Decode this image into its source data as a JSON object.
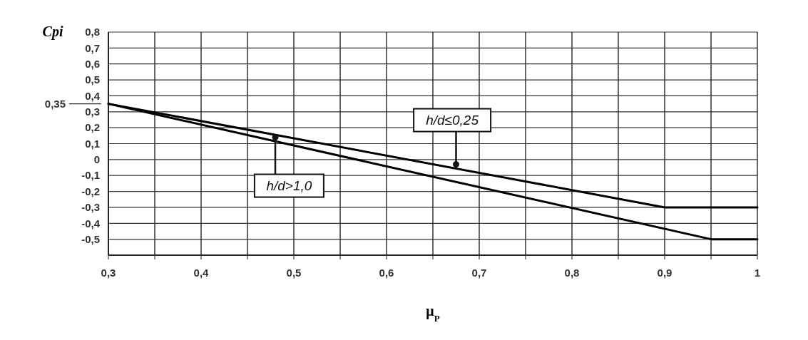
{
  "chart_data": {
    "type": "line",
    "xlabel": "μ$_{P}$",
    "ylabel": "Cpi",
    "series": [
      {
        "color": "#000000",
        "x": [
          0.3,
          0.9,
          1
        ],
        "values": [
          0.35,
          -0.3,
          -0.3
        ]
      },
      {
        "color": "#000000",
        "x": [
          0.3,
          0.95,
          1
        ],
        "values": [
          0.35,
          -0.5,
          -0.5
        ]
      }
    ],
    "xlim": [
      0.3,
      1
    ],
    "ylim": [
      -0.6,
      0.8
    ],
    "xticks": [
      {
        "value": 0.3,
        "label": "0,3"
      },
      {
        "value": 0.35,
        "label": null
      },
      {
        "value": 0.4,
        "label": "0,4"
      },
      {
        "value": 0.45,
        "label": null
      },
      {
        "value": 0.5,
        "label": "0,5"
      },
      {
        "value": 0.55,
        "label": null
      },
      {
        "value": 0.6,
        "label": "0,6"
      },
      {
        "value": 0.65,
        "label": null
      },
      {
        "value": 0.7,
        "label": "0,7"
      },
      {
        "value": 0.75,
        "label": null
      },
      {
        "value": 0.8,
        "label": "0,8"
      },
      {
        "value": 0.85,
        "label": null
      },
      {
        "value": 0.9,
        "label": "0,9"
      },
      {
        "value": 0.95,
        "label": null
      },
      1
    ],
    "yticks": [
      {
        "value": -0.6,
        "label": null
      },
      {
        "value": -0.5,
        "label": "-0,5"
      },
      {
        "value": -0.4,
        "label": "-0,4"
      },
      {
        "value": -0.3,
        "label": "-0,3"
      },
      {
        "value": -0.2,
        "label": "-0,2"
      },
      {
        "value": -0.1,
        "label": "-0,1"
      },
      0,
      {
        "value": 0.1,
        "label": "0,1"
      },
      {
        "value": 0.2,
        "label": "0,2"
      },
      {
        "value": 0.3,
        "label": "0,3"
      },
      {
        "value": 0.4,
        "label": "0,4"
      },
      {
        "value": 0.5,
        "label": "0,5"
      },
      {
        "value": 0.6,
        "label": "0,6"
      },
      {
        "value": 0.7,
        "label": "0,7"
      },
      {
        "value": 0.8,
        "label": "0,8"
      }
    ],
    "ref_lines": [
      {
        "axis": "y",
        "value": 0.35,
        "label": "0,35"
      }
    ],
    "annotations": [
      {
        "text": "h/d≤0,25",
        "x": 0.675,
        "y": -0.03
      },
      {
        "text": "h/d>1,0",
        "x": 0.48,
        "y": 0.14
      }
    ],
    "grid": true,
    "marker": "none",
    "line_style": "solid"
  }
}
